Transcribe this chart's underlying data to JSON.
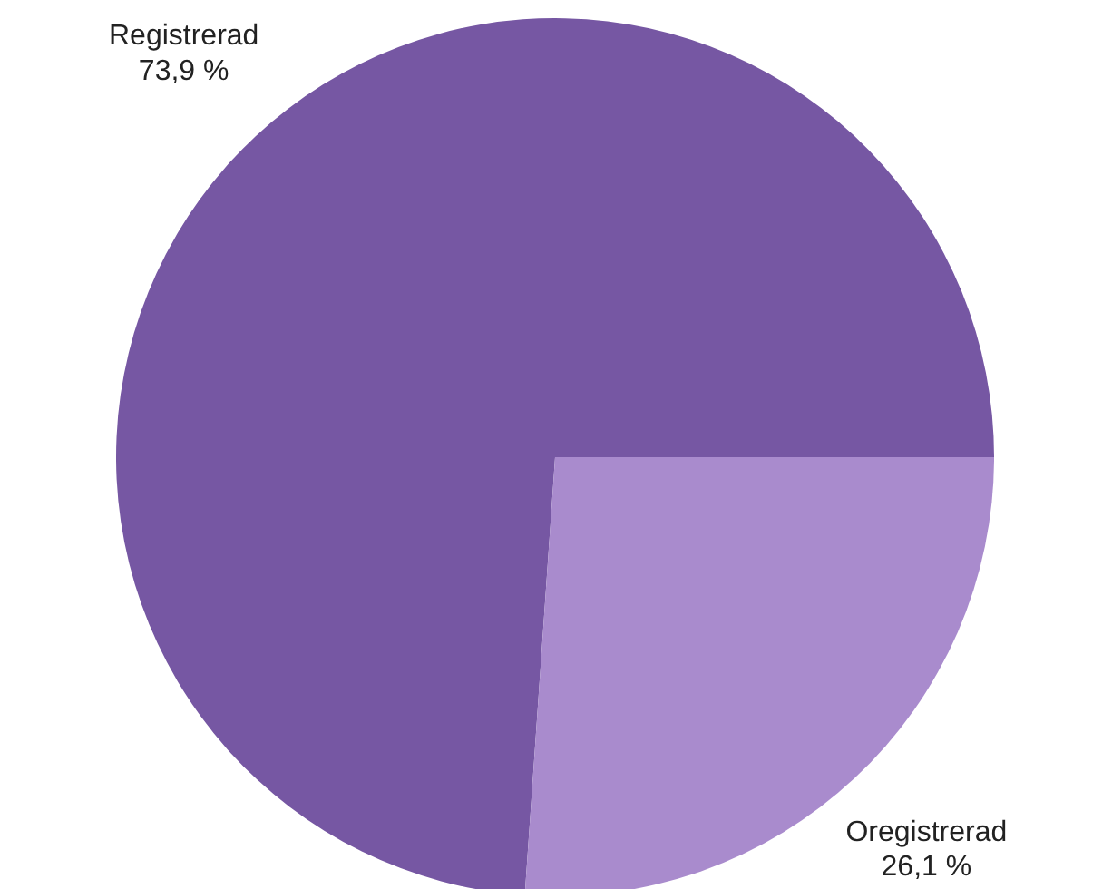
{
  "chart_data": {
    "type": "pie",
    "categories": [
      "Registrerad",
      "Oregistrerad"
    ],
    "values": [
      73.9,
      26.1
    ],
    "colors": [
      "#7657a3",
      "#a98bcd"
    ],
    "value_labels": [
      "73,9 %",
      "26,1 %"
    ]
  }
}
